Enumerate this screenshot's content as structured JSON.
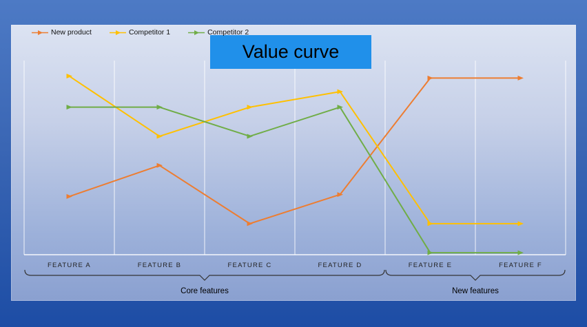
{
  "title_box": {
    "text": "Value curve",
    "background": "#2090ea",
    "text_color": "#000000"
  },
  "chart_data": {
    "type": "line",
    "title": "Value curve",
    "categories": [
      "FEATURE A",
      "FEATURE B",
      "FEATURE C",
      "FEATURE D",
      "FEATURE E",
      "FEATURE F"
    ],
    "series": [
      {
        "name": "New product",
        "color": "#ed7d31",
        "values": [
          3.0,
          4.6,
          1.6,
          3.1,
          9.1,
          9.1
        ]
      },
      {
        "name": "Competitor 1",
        "color": "#ffc000",
        "values": [
          9.2,
          6.1,
          7.6,
          8.4,
          1.6,
          1.6
        ]
      },
      {
        "name": "Competitor 2",
        "color": "#70ad47",
        "values": [
          7.6,
          7.6,
          6.1,
          7.6,
          0.1,
          0.1
        ]
      }
    ],
    "ylim": [
      0,
      10
    ],
    "xlabel": "",
    "ylabel": "",
    "legend_position": "top-left",
    "grid": "vertical-white-gridlines",
    "groups": [
      {
        "label": "Core features",
        "from": 0,
        "to": 3
      },
      {
        "label": "New features",
        "from": 4,
        "to": 5
      }
    ],
    "axis_label_color": "#222222",
    "brace_color": "#333333"
  }
}
